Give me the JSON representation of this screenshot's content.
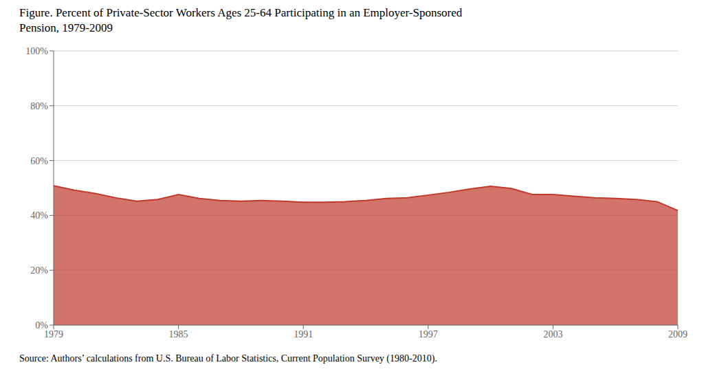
{
  "chart_data": {
    "type": "area",
    "title": "Figure. Percent of Private-Sector Workers Ages 25-64 Participating in an Employer-Sponsored\nPension, 1979-2009",
    "annotations": [
      "Source: Authors’ calculations from U.S. Bureau of Labor Statistics, Current Population Survey (1980-2010)."
    ],
    "x": [
      1979,
      1980,
      1981,
      1982,
      1983,
      1984,
      1985,
      1986,
      1987,
      1988,
      1989,
      1990,
      1991,
      1992,
      1993,
      1994,
      1995,
      1996,
      1997,
      1998,
      1999,
      2000,
      2001,
      2002,
      2003,
      2004,
      2005,
      2006,
      2007,
      2008,
      2009
    ],
    "values": [
      0.508,
      0.492,
      0.48,
      0.464,
      0.452,
      0.458,
      0.476,
      0.462,
      0.454,
      0.452,
      0.454,
      0.452,
      0.448,
      0.448,
      0.45,
      0.454,
      0.462,
      0.464,
      0.474,
      0.484,
      0.496,
      0.506,
      0.498,
      0.476,
      0.476,
      0.47,
      0.464,
      0.462,
      0.458,
      0.45,
      0.418
    ],
    "color": "#C0392B",
    "xlim": [
      1979,
      2009
    ],
    "xticks": [
      1979,
      1985,
      1991,
      1997,
      2003,
      2009
    ],
    "ylim": [
      0,
      1.0
    ],
    "yticks": [
      {
        "value": 0,
        "label": "0%"
      },
      {
        "value": 0.2,
        "label": "20%"
      },
      {
        "value": 0.4,
        "label": "40%"
      },
      {
        "value": 0.6,
        "label": "60%"
      },
      {
        "value": 0.8,
        "label": "80%"
      },
      {
        "value": 1.0,
        "label": "100%"
      }
    ],
    "grid": true
  }
}
